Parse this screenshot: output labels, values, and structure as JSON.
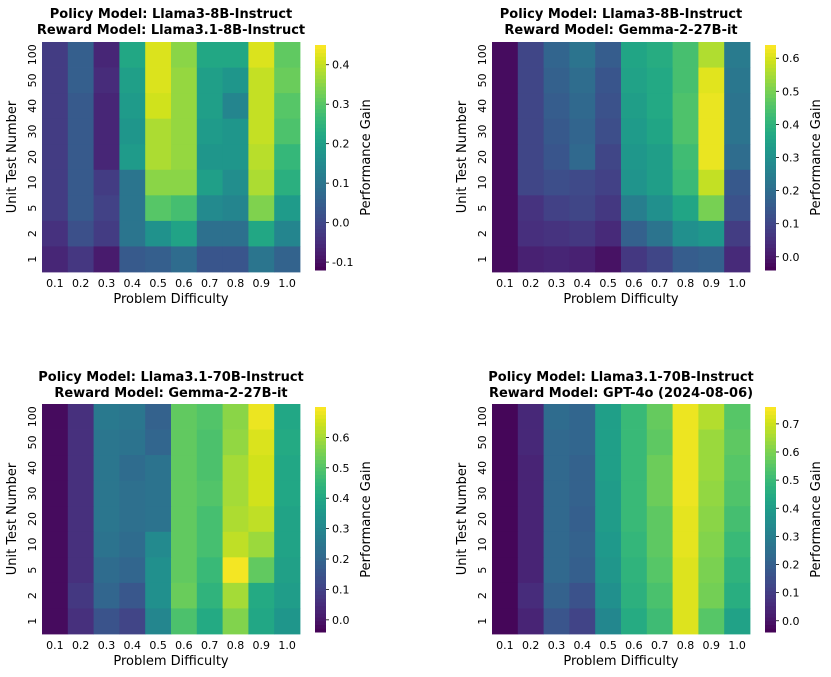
{
  "figure": {
    "colormap": "viridis",
    "x_label": "Problem Difficulty",
    "y_label": "Unit Test Number",
    "colorbar_label": "Performance Gain"
  },
  "chart_data": [
    {
      "type": "heatmap",
      "title_line1": "Policy Model: Llama3-8B-Instruct",
      "title_line2": "Reward Model: Llama3.1-8B-Instruct",
      "xlabel": "Problem Difficulty",
      "ylabel": "Unit Test Number",
      "x": [
        "0.1",
        "0.2",
        "0.3",
        "0.4",
        "0.5",
        "0.6",
        "0.7",
        "0.8",
        "0.9",
        "1.0"
      ],
      "y": [
        "100",
        "50",
        "40",
        "30",
        "20",
        "10",
        "5",
        "2",
        "1"
      ],
      "values": [
        [
          -0.02,
          0.05,
          -0.06,
          0.22,
          0.42,
          0.35,
          0.22,
          0.22,
          0.42,
          0.31
        ],
        [
          -0.02,
          0.05,
          -0.05,
          0.2,
          0.42,
          0.36,
          0.2,
          0.18,
          0.4,
          0.32
        ],
        [
          -0.02,
          0.04,
          -0.06,
          0.19,
          0.41,
          0.36,
          0.2,
          0.14,
          0.4,
          0.3
        ],
        [
          -0.02,
          0.04,
          -0.06,
          0.18,
          0.38,
          0.36,
          0.19,
          0.18,
          0.4,
          0.29
        ],
        [
          -0.02,
          0.04,
          -0.06,
          0.19,
          0.38,
          0.36,
          0.18,
          0.18,
          0.39,
          0.26
        ],
        [
          -0.02,
          0.04,
          -0.02,
          0.1,
          0.35,
          0.35,
          0.2,
          0.16,
          0.38,
          0.24
        ],
        [
          -0.02,
          0.04,
          -0.01,
          0.1,
          0.3,
          0.28,
          0.15,
          0.14,
          0.34,
          0.19
        ],
        [
          -0.04,
          0.02,
          -0.02,
          0.1,
          0.17,
          0.21,
          0.09,
          0.09,
          0.22,
          0.14
        ],
        [
          -0.06,
          -0.03,
          -0.08,
          0.04,
          0.05,
          0.08,
          0.03,
          0.03,
          0.1,
          0.06
        ]
      ],
      "vmin": -0.12,
      "vmax": 0.45,
      "colorbar_ticks": [
        "-0.1",
        "0.0",
        "0.1",
        "0.2",
        "0.3",
        "0.4"
      ]
    },
    {
      "type": "heatmap",
      "title_line1": "Policy Model: Llama3-8B-Instruct",
      "title_line2": "Reward Model: Gemma-2-27B-it",
      "xlabel": "Problem Difficulty",
      "ylabel": "Unit Test Number",
      "x": [
        "0.1",
        "0.2",
        "0.3",
        "0.4",
        "0.5",
        "0.6",
        "0.7",
        "0.8",
        "0.9",
        "1.0"
      ],
      "y": [
        "100",
        "50",
        "40",
        "30",
        "20",
        "10",
        "5",
        "2",
        "1"
      ],
      "values": [
        [
          -0.02,
          0.1,
          0.18,
          0.22,
          0.16,
          0.36,
          0.38,
          0.44,
          0.56,
          0.24
        ],
        [
          -0.02,
          0.1,
          0.17,
          0.2,
          0.14,
          0.35,
          0.37,
          0.44,
          0.61,
          0.23
        ],
        [
          -0.02,
          0.1,
          0.16,
          0.19,
          0.13,
          0.34,
          0.37,
          0.45,
          0.62,
          0.22
        ],
        [
          -0.02,
          0.1,
          0.15,
          0.18,
          0.12,
          0.33,
          0.36,
          0.45,
          0.62,
          0.22
        ],
        [
          -0.02,
          0.1,
          0.14,
          0.19,
          0.1,
          0.32,
          0.34,
          0.43,
          0.62,
          0.2
        ],
        [
          -0.02,
          0.1,
          0.12,
          0.11,
          0.09,
          0.31,
          0.34,
          0.42,
          0.58,
          0.15
        ],
        [
          -0.02,
          0.06,
          0.09,
          0.1,
          0.07,
          0.25,
          0.3,
          0.36,
          0.5,
          0.13
        ],
        [
          -0.02,
          0.05,
          0.06,
          0.07,
          0.04,
          0.17,
          0.22,
          0.3,
          0.32,
          0.08
        ],
        [
          -0.02,
          0.02,
          0.03,
          0.02,
          -0.01,
          0.07,
          0.1,
          0.16,
          0.17,
          0.04
        ]
      ],
      "vmin": -0.04,
      "vmax": 0.64,
      "colorbar_ticks": [
        "0.0",
        "0.1",
        "0.2",
        "0.3",
        "0.4",
        "0.5",
        "0.6"
      ]
    },
    {
      "type": "heatmap",
      "title_line1": "Policy Model: Llama3.1-70B-Instruct",
      "title_line2": "Reward Model: Gemma-2-27B-it",
      "xlabel": "Problem Difficulty",
      "ylabel": "Unit Test Number",
      "x": [
        "0.1",
        "0.2",
        "0.3",
        "0.4",
        "0.5",
        "0.6",
        "0.7",
        "0.8",
        "0.9",
        "1.0"
      ],
      "y": [
        "100",
        "50",
        "40",
        "30",
        "20",
        "10",
        "5",
        "2",
        "1"
      ],
      "values": [
        [
          -0.02,
          0.06,
          0.26,
          0.25,
          0.19,
          0.52,
          0.5,
          0.57,
          0.68,
          0.4
        ],
        [
          -0.02,
          0.06,
          0.25,
          0.24,
          0.2,
          0.52,
          0.49,
          0.58,
          0.66,
          0.41
        ],
        [
          -0.02,
          0.06,
          0.25,
          0.22,
          0.24,
          0.52,
          0.49,
          0.6,
          0.65,
          0.4
        ],
        [
          -0.02,
          0.06,
          0.25,
          0.23,
          0.24,
          0.52,
          0.5,
          0.6,
          0.65,
          0.4
        ],
        [
          -0.02,
          0.06,
          0.25,
          0.23,
          0.24,
          0.52,
          0.48,
          0.61,
          0.63,
          0.39
        ],
        [
          -0.02,
          0.06,
          0.24,
          0.22,
          0.31,
          0.52,
          0.48,
          0.63,
          0.59,
          0.39
        ],
        [
          -0.02,
          0.06,
          0.22,
          0.2,
          0.33,
          0.52,
          0.46,
          0.69,
          0.52,
          0.38
        ],
        [
          -0.02,
          0.08,
          0.2,
          0.16,
          0.33,
          0.53,
          0.44,
          0.6,
          0.41,
          0.37
        ],
        [
          -0.02,
          0.06,
          0.15,
          0.11,
          0.3,
          0.49,
          0.41,
          0.56,
          0.4,
          0.35
        ]
      ],
      "vmin": -0.04,
      "vmax": 0.7,
      "colorbar_ticks": [
        "0.0",
        "0.1",
        "0.2",
        "0.3",
        "0.4",
        "0.5",
        "0.6"
      ]
    },
    {
      "type": "heatmap",
      "title_line1": "Policy Model: Llama3.1-70B-Instruct",
      "title_line2": "Reward Model: GPT-4o (2024-08-06)",
      "xlabel": "Problem Difficulty",
      "ylabel": "Unit Test Number",
      "x": [
        "0.1",
        "0.2",
        "0.3",
        "0.4",
        "0.5",
        "0.6",
        "0.7",
        "0.8",
        "0.9",
        "1.0"
      ],
      "y": [
        "100",
        "50",
        "40",
        "30",
        "20",
        "10",
        "5",
        "2",
        "1"
      ],
      "values": [
        [
          -0.03,
          0.05,
          0.24,
          0.22,
          0.41,
          0.5,
          0.57,
          0.74,
          0.67,
          0.55
        ],
        [
          -0.03,
          0.05,
          0.23,
          0.22,
          0.41,
          0.5,
          0.56,
          0.74,
          0.64,
          0.56
        ],
        [
          -0.03,
          0.04,
          0.23,
          0.21,
          0.41,
          0.5,
          0.58,
          0.74,
          0.64,
          0.55
        ],
        [
          -0.03,
          0.04,
          0.23,
          0.21,
          0.4,
          0.5,
          0.58,
          0.74,
          0.63,
          0.54
        ],
        [
          -0.03,
          0.04,
          0.23,
          0.2,
          0.4,
          0.5,
          0.56,
          0.73,
          0.62,
          0.52
        ],
        [
          -0.03,
          0.04,
          0.23,
          0.21,
          0.39,
          0.49,
          0.56,
          0.73,
          0.61,
          0.5
        ],
        [
          -0.03,
          0.04,
          0.23,
          0.2,
          0.38,
          0.48,
          0.55,
          0.72,
          0.6,
          0.48
        ],
        [
          -0.03,
          0.06,
          0.21,
          0.16,
          0.36,
          0.47,
          0.53,
          0.72,
          0.59,
          0.46
        ],
        [
          -0.03,
          0.04,
          0.17,
          0.12,
          0.33,
          0.45,
          0.51,
          0.72,
          0.55,
          0.42
        ]
      ],
      "vmin": -0.04,
      "vmax": 0.76,
      "colorbar_ticks": [
        "0.0",
        "0.1",
        "0.2",
        "0.3",
        "0.4",
        "0.5",
        "0.6",
        "0.7"
      ]
    }
  ]
}
